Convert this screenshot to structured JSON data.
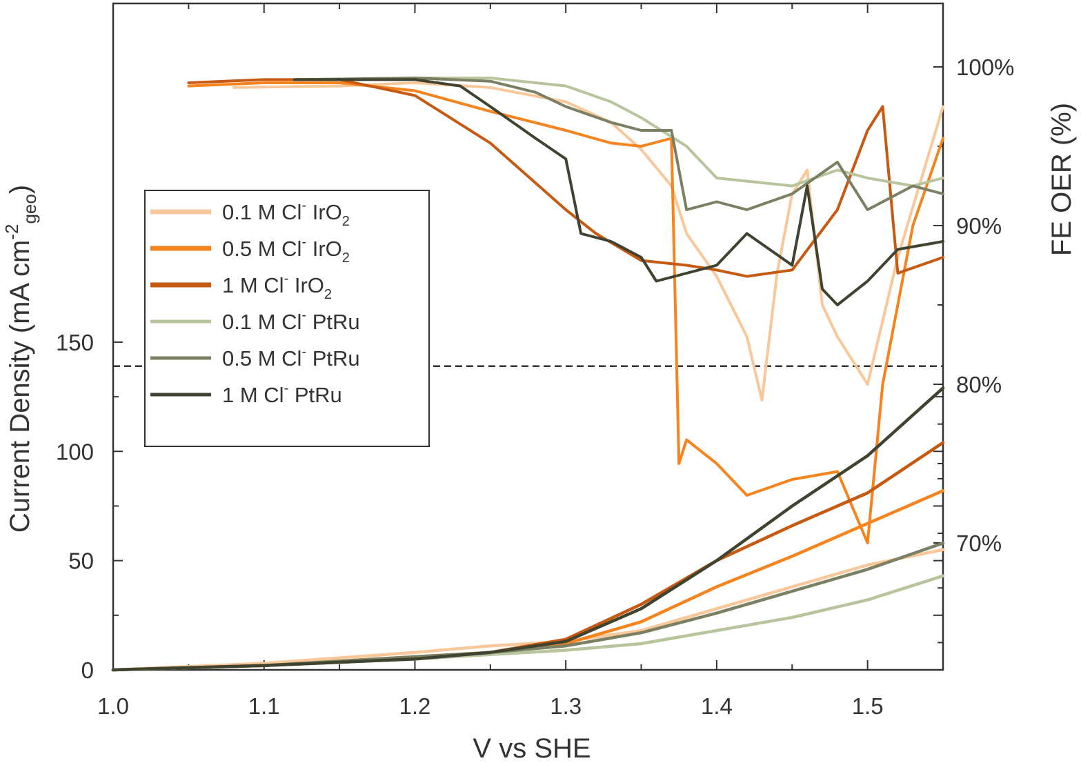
{
  "chart_data": {
    "type": "line",
    "xlabel": "V vs SHE",
    "ylabel_left": "Current Density (mA cm",
    "ylabel_left_sup": "-2",
    "ylabel_left_sub": "geo",
    "ylabel_left_close": ")",
    "ylabel_right": "FE OER (%)",
    "xlim": [
      1.0,
      1.55
    ],
    "ylim_left": [
      0,
      305
    ],
    "ylim_right": [
      62,
      104
    ],
    "x_ticks": [
      "1.0",
      "1.1",
      "1.2",
      "1.3",
      "1.4",
      "1.5"
    ],
    "y_left_ticks": [
      "0",
      "50",
      "100",
      "150"
    ],
    "y_right_ticks": [
      "70%",
      "80%",
      "90%",
      "100%"
    ],
    "divider_y_left": 139,
    "legend": {
      "placement": "middle-left",
      "entries": [
        {
          "text": "0.1 M Cl",
          "sup": "-",
          "material": " IrO",
          "sub": "2",
          "color": "#F9C89A"
        },
        {
          "text": "0.5 M Cl",
          "sup": "-",
          "material": " IrO",
          "sub": "2",
          "color": "#F5841F"
        },
        {
          "text": "1 M Cl",
          "sup": "-",
          "material": " IrO",
          "sub": "2",
          "color": "#C65A12"
        },
        {
          "text": "0.1 M Cl",
          "sup": "-",
          "material": " PtRu",
          "sub": "",
          "color": "#B7C49C"
        },
        {
          "text": "0.5 M Cl",
          "sup": "-",
          "material": " PtRu",
          "sub": "",
          "color": "#7B8062"
        },
        {
          "text": "1 M Cl",
          "sup": "-",
          "material": " PtRu",
          "sub": "",
          "color": "#3F4430"
        }
      ]
    },
    "series_current": [
      {
        "color": "#F9C89A",
        "x": [
          1.0,
          1.1,
          1.2,
          1.25,
          1.3,
          1.35,
          1.4,
          1.45,
          1.5,
          1.55
        ],
        "y": [
          0,
          3,
          8,
          11,
          13,
          18,
          28,
          38,
          48,
          55
        ]
      },
      {
        "color": "#F5841F",
        "x": [
          1.0,
          1.1,
          1.2,
          1.25,
          1.3,
          1.35,
          1.4,
          1.45,
          1.5,
          1.55
        ],
        "y": [
          0,
          2,
          6,
          8,
          12,
          22,
          38,
          52,
          67,
          82
        ]
      },
      {
        "color": "#C65A12",
        "x": [
          1.0,
          1.1,
          1.2,
          1.25,
          1.3,
          1.35,
          1.4,
          1.45,
          1.5,
          1.55
        ],
        "y": [
          0,
          2,
          5,
          8,
          14,
          30,
          50,
          66,
          81,
          104
        ]
      },
      {
        "color": "#B7C49C",
        "x": [
          1.0,
          1.1,
          1.2,
          1.25,
          1.3,
          1.35,
          1.4,
          1.45,
          1.5,
          1.55
        ],
        "y": [
          0,
          2,
          5,
          7,
          9,
          12,
          18,
          24,
          32,
          43
        ]
      },
      {
        "color": "#7B8062",
        "x": [
          1.0,
          1.1,
          1.2,
          1.25,
          1.3,
          1.35,
          1.4,
          1.45,
          1.5,
          1.55
        ],
        "y": [
          0,
          2,
          6,
          8,
          11,
          17,
          26,
          36,
          46,
          58
        ]
      },
      {
        "color": "#3F4430",
        "x": [
          1.0,
          1.1,
          1.2,
          1.25,
          1.3,
          1.35,
          1.4,
          1.45,
          1.5,
          1.55
        ],
        "y": [
          0,
          2,
          5,
          8,
          13,
          28,
          50,
          75,
          98,
          129
        ]
      }
    ],
    "series_fe": [
      {
        "color": "#F9C89A",
        "x": [
          1.08,
          1.15,
          1.2,
          1.25,
          1.3,
          1.33,
          1.35,
          1.37,
          1.38,
          1.4,
          1.42,
          1.43,
          1.44,
          1.45,
          1.46,
          1.47,
          1.48,
          1.5,
          1.52,
          1.55
        ],
        "y": [
          98.7,
          98.8,
          99,
          98.7,
          97.8,
          96.5,
          94.8,
          92.5,
          89.5,
          86.8,
          83,
          79,
          87,
          92,
          93.5,
          85,
          83,
          80,
          88,
          97.5
        ]
      },
      {
        "color": "#F5841F",
        "x": [
          1.05,
          1.1,
          1.15,
          1.2,
          1.25,
          1.3,
          1.33,
          1.35,
          1.37,
          1.375,
          1.38,
          1.4,
          1.42,
          1.45,
          1.48,
          1.5,
          1.51,
          1.53,
          1.55
        ],
        "y": [
          98.8,
          99,
          99,
          98.5,
          97.2,
          96,
          95.2,
          95,
          95.5,
          75,
          76.5,
          75,
          73,
          74,
          74.5,
          70,
          80,
          90,
          95.5
        ]
      },
      {
        "color": "#C65A12",
        "x": [
          1.05,
          1.1,
          1.15,
          1.2,
          1.25,
          1.3,
          1.32,
          1.35,
          1.38,
          1.4,
          1.42,
          1.45,
          1.48,
          1.5,
          1.51,
          1.52,
          1.55
        ],
        "y": [
          99,
          99.2,
          99.2,
          98.2,
          95.2,
          91,
          89.5,
          87.8,
          87.5,
          87.2,
          86.8,
          87.2,
          91,
          96,
          97.5,
          87,
          88
        ]
      },
      {
        "color": "#B7C49C",
        "x": [
          1.12,
          1.2,
          1.25,
          1.3,
          1.33,
          1.35,
          1.38,
          1.4,
          1.42,
          1.45,
          1.48,
          1.5,
          1.53,
          1.55
        ],
        "y": [
          99.2,
          99.3,
          99.3,
          98.8,
          97.8,
          96.8,
          95,
          93,
          92.8,
          92.5,
          93.5,
          93,
          92.5,
          93
        ]
      },
      {
        "color": "#7B8062",
        "x": [
          1.12,
          1.2,
          1.25,
          1.28,
          1.3,
          1.33,
          1.35,
          1.37,
          1.38,
          1.4,
          1.42,
          1.45,
          1.48,
          1.5,
          1.53,
          1.55
        ],
        "y": [
          99.2,
          99.3,
          99.1,
          98.4,
          97.5,
          96.5,
          96,
          96,
          91,
          91.5,
          91,
          92,
          94,
          91,
          92.5,
          92
        ]
      },
      {
        "color": "#3F4430",
        "x": [
          1.12,
          1.2,
          1.23,
          1.25,
          1.28,
          1.3,
          1.31,
          1.33,
          1.35,
          1.36,
          1.4,
          1.42,
          1.45,
          1.46,
          1.47,
          1.48,
          1.5,
          1.52,
          1.55
        ],
        "y": [
          99.2,
          99.2,
          98.8,
          97.5,
          95.5,
          94.2,
          89.5,
          89,
          88,
          86.5,
          87.5,
          89.5,
          87.5,
          92.5,
          86,
          85,
          86.5,
          88.5,
          89
        ]
      }
    ]
  }
}
